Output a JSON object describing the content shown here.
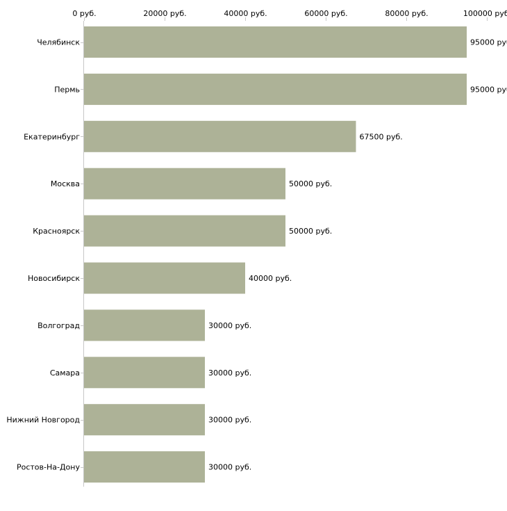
{
  "chart_data": {
    "type": "bar",
    "orientation": "horizontal",
    "title": "",
    "xlabel": "",
    "ylabel": "",
    "xlim": [
      0,
      100000
    ],
    "x_ticks": [
      0,
      20000,
      40000,
      60000,
      80000,
      100000
    ],
    "tick_suffix": " руб.",
    "value_suffix": " руб.",
    "grid": false,
    "bar_color": "#adb297",
    "categories": [
      "Челябинск",
      "Пермь",
      "Екатеринбург",
      "Москва",
      "Красноярск",
      "Новосибирск",
      "Волгоград",
      "Самара",
      "Нижний Новгород",
      "Ростов-На-Дону"
    ],
    "values": [
      95000,
      95000,
      67500,
      50000,
      50000,
      40000,
      30000,
      30000,
      30000,
      30000
    ]
  }
}
